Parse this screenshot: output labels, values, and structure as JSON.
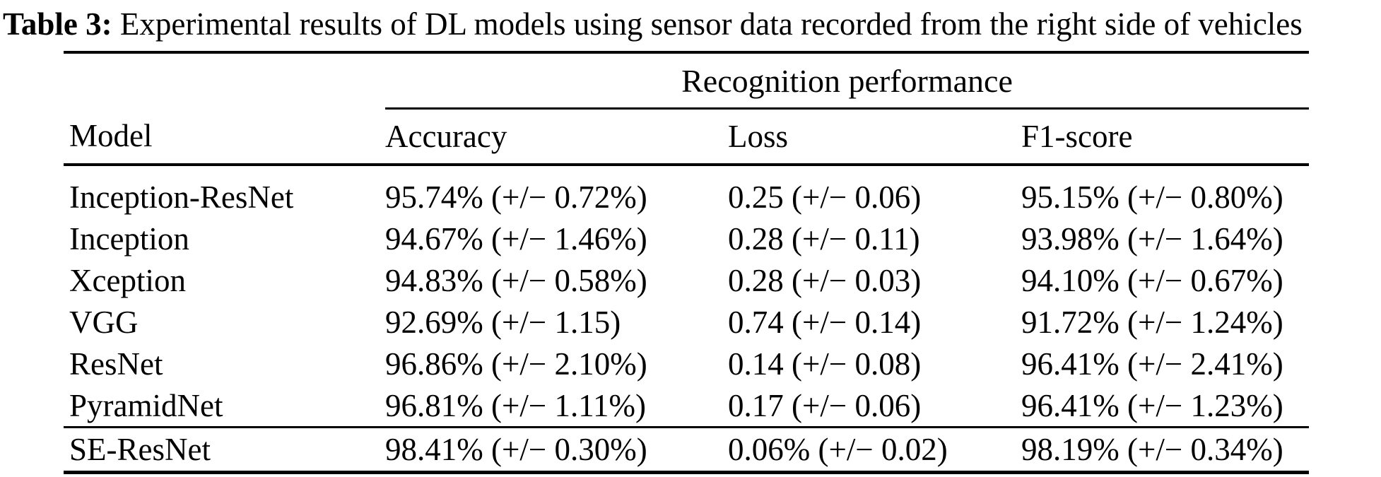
{
  "caption": {
    "label": "Table 3:",
    "text": " Experimental results of DL models using sensor data recorded from the right side of vehicles"
  },
  "table": {
    "group_header": "Recognition performance",
    "columns": [
      "Model",
      "Accuracy",
      "Loss",
      "F1-score"
    ],
    "rows": [
      [
        "Inception-ResNet",
        "95.74% (+/− 0.72%)",
        "0.25 (+/− 0.06)",
        "95.15% (+/− 0.80%)"
      ],
      [
        "Inception",
        "94.67% (+/− 1.46%)",
        "0.28 (+/− 0.11)",
        "93.98% (+/− 1.64%)"
      ],
      [
        "Xception",
        "94.83% (+/− 0.58%)",
        "0.28 (+/− 0.03)",
        "94.10% (+/− 0.67%)"
      ],
      [
        "VGG",
        "92.69% (+/− 1.15)",
        "0.74 (+/− 0.14)",
        "91.72% (+/− 1.24%)"
      ],
      [
        "ResNet",
        "96.86% (+/− 2.10%)",
        "0.14 (+/− 0.08)",
        "96.41% (+/− 2.41%)"
      ],
      [
        "PyramidNet",
        "96.81% (+/− 1.11%)",
        "0.17 (+/− 0.06)",
        "96.41% (+/− 1.23%)"
      ]
    ],
    "highlight_row": [
      "SE-ResNet",
      "98.41% (+/− 0.30%)",
      "0.06% (+/− 0.02)",
      "98.19% (+/− 0.34%)"
    ]
  },
  "colors": {
    "text": "#000000",
    "background": "#ffffff",
    "rule": "#000000"
  }
}
